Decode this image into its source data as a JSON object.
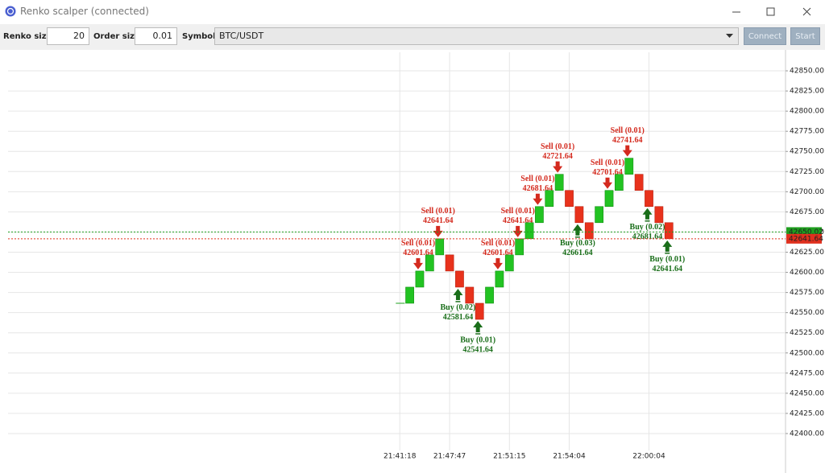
{
  "window": {
    "title": "Renko scalper (connected)"
  },
  "toolbar": {
    "renko_size_label": "Renko size:",
    "renko_size": 20,
    "order_size_label": "Order size:",
    "order_size": 0.01,
    "symbol_label": "Symbol:",
    "symbol": "BTC/USDT",
    "connect": "Connect",
    "start": "Start"
  },
  "chart_data": {
    "type": "renko",
    "up_color": "#22c322",
    "down_color": "#e8321c",
    "bricks": [
      {
        "open": 42561.64,
        "close": 42581.64
      },
      {
        "open": 42581.64,
        "close": 42601.64,
        "order": {
          "label": "Sell (0.01)",
          "price": 42601.64
        }
      },
      {
        "open": 42601.64,
        "close": 42621.64
      },
      {
        "open": 42621.64,
        "close": 42641.64,
        "order": {
          "label": "Sell (0.01)",
          "price": 42641.64
        }
      },
      {
        "open": 42621.64,
        "close": 42601.64
      },
      {
        "open": 42601.64,
        "close": 42581.64,
        "order": {
          "label": "Buy (0.02)",
          "price": 42581.64
        }
      },
      {
        "open": 42581.64,
        "close": 42561.64
      },
      {
        "open": 42561.64,
        "close": 42541.64,
        "order": {
          "label": "Buy (0.01)",
          "price": 42541.64
        }
      },
      {
        "open": 42561.64,
        "close": 42581.64
      },
      {
        "open": 42581.64,
        "close": 42601.64,
        "order": {
          "label": "Sell (0.01)",
          "price": 42601.64
        }
      },
      {
        "open": 42601.64,
        "close": 42621.64
      },
      {
        "open": 42621.64,
        "close": 42641.64,
        "order": {
          "label": "Sell (0.01)",
          "price": 42641.64
        }
      },
      {
        "open": 42641.64,
        "close": 42661.64
      },
      {
        "open": 42661.64,
        "close": 42681.64,
        "order": {
          "label": "Sell (0.01)",
          "price": 42681.64
        }
      },
      {
        "open": 42681.64,
        "close": 42701.64
      },
      {
        "open": 42701.64,
        "close": 42721.64,
        "order": {
          "label": "Sell (0.01)",
          "price": 42721.64
        }
      },
      {
        "open": 42701.64,
        "close": 42681.64
      },
      {
        "open": 42681.64,
        "close": 42661.64,
        "order": {
          "label": "Buy (0.03)",
          "price": 42661.64
        }
      },
      {
        "open": 42661.64,
        "close": 42641.64
      },
      {
        "open": 42661.64,
        "close": 42681.64
      },
      {
        "open": 42681.64,
        "close": 42701.64,
        "order": {
          "label": "Sell (0.01)",
          "price": 42701.64
        }
      },
      {
        "open": 42701.64,
        "close": 42721.64
      },
      {
        "open": 42721.64,
        "close": 42741.64,
        "order": {
          "label": "Sell (0.01)",
          "price": 42741.64
        }
      },
      {
        "open": 42721.64,
        "close": 42701.64
      },
      {
        "open": 42701.64,
        "close": 42681.64,
        "order": {
          "label": "Buy (0.02)",
          "price": 42681.64
        }
      },
      {
        "open": 42681.64,
        "close": 42661.64
      },
      {
        "open": 42661.64,
        "close": 42641.64,
        "order": {
          "label": "Buy (0.01)",
          "price": 42641.64
        }
      }
    ],
    "price_lines": [
      {
        "value": 42650.02,
        "color": "#1e9e1e"
      },
      {
        "value": 42641.64,
        "color": "#e0301e"
      }
    ],
    "xlim": [
      -40.3,
      37.7
    ],
    "xticks": [
      {
        "value": -1,
        "label": "21:41:18"
      },
      {
        "value": 4,
        "label": "21:47:47"
      },
      {
        "value": 10,
        "label": "21:51:15"
      },
      {
        "value": 16,
        "label": "21:54:04"
      },
      {
        "value": 24,
        "label": "22:00:04"
      }
    ],
    "ylim": [
      42379,
      42873
    ],
    "yticks": [
      {
        "value": 42400,
        "label": "42400.00"
      },
      {
        "value": 42425,
        "label": "42425.00"
      },
      {
        "value": 42450,
        "label": "42450.00"
      },
      {
        "value": 42475,
        "label": "42475.00"
      },
      {
        "value": 42500,
        "label": "42500.00"
      },
      {
        "value": 42525,
        "label": "42525.00"
      },
      {
        "value": 42550,
        "label": "42550.00"
      },
      {
        "value": 42575,
        "label": "42575.00"
      },
      {
        "value": 42600,
        "label": "42600.00"
      },
      {
        "value": 42625,
        "label": "42625.00"
      },
      {
        "value": 42650,
        "label": "42650.00"
      },
      {
        "value": 42675,
        "label": "42675.00"
      },
      {
        "value": 42700,
        "label": "42700.00"
      },
      {
        "value": 42725,
        "label": "42725.00"
      },
      {
        "value": 42750,
        "label": "42750.00"
      },
      {
        "value": 42775,
        "label": "42775.00"
      },
      {
        "value": 42800,
        "label": "42800.00"
      },
      {
        "value": 42825,
        "label": "42825.00"
      },
      {
        "value": 42850,
        "label": "42850.00"
      }
    ],
    "grid": true
  }
}
